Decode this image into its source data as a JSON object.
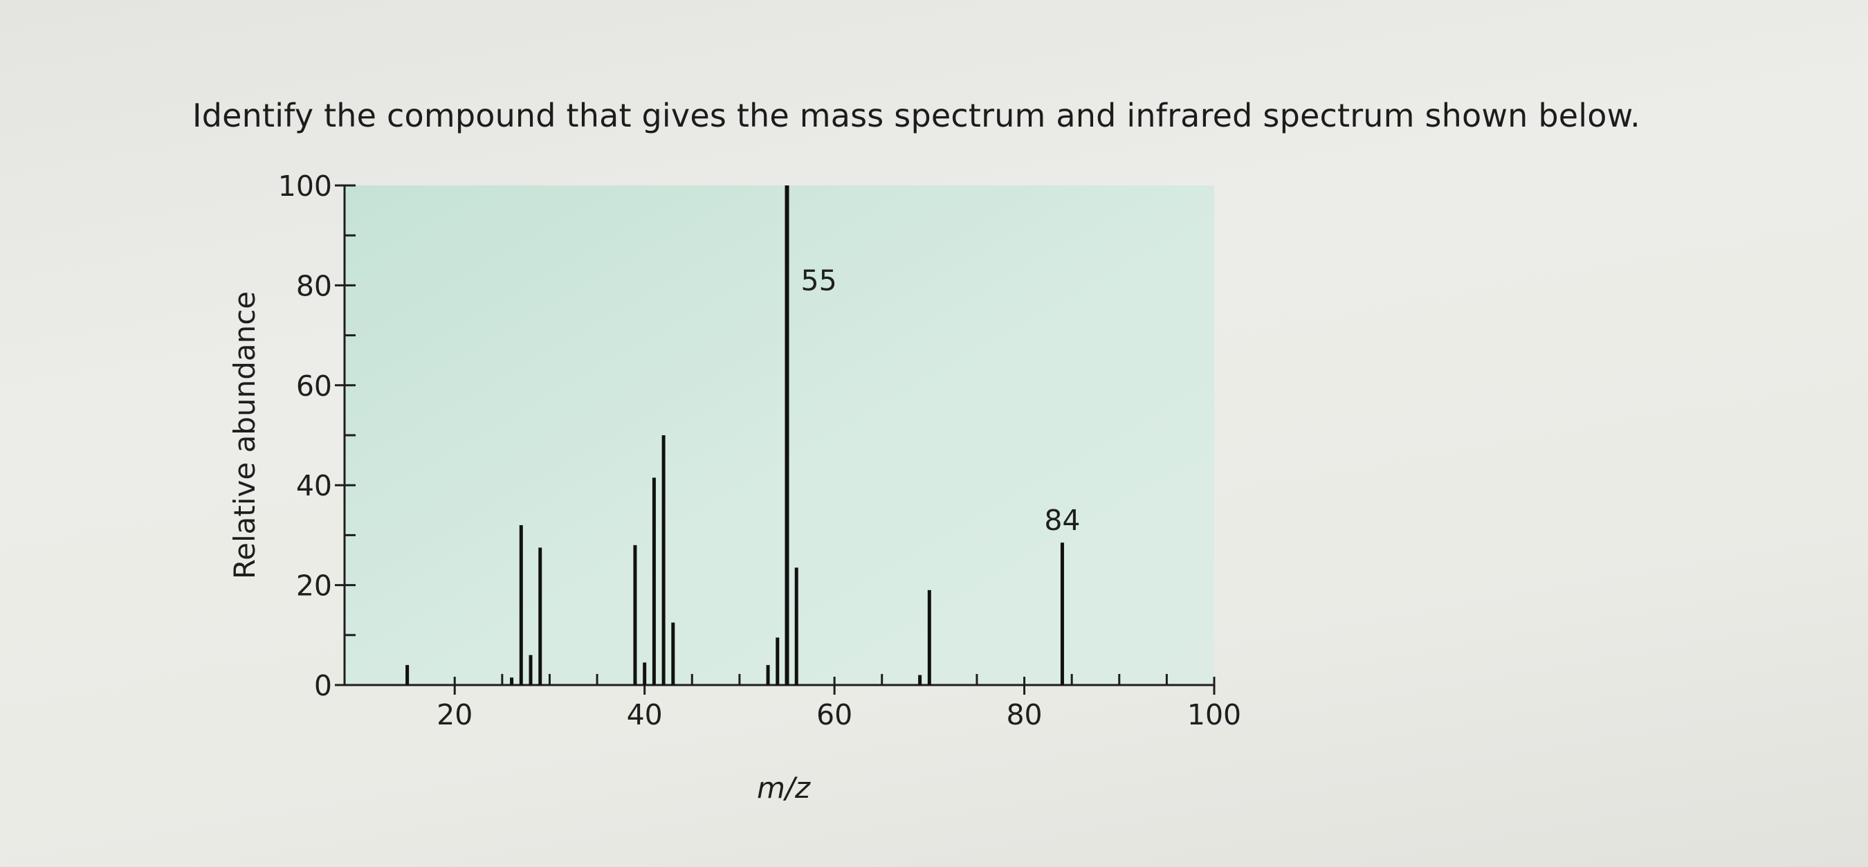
{
  "question": {
    "text": "Identify the compound that gives the mass spectrum and infrared spectrum shown below."
  },
  "chart_data": {
    "type": "bar",
    "subtype": "mass-spectrum",
    "xlabel": "m/z",
    "ylabel": "Relative abundance",
    "xlim": [
      10,
      100
    ],
    "ylim": [
      0,
      100
    ],
    "x_ticks_major": [
      20,
      40,
      60,
      80,
      100
    ],
    "x_ticks_minor": [
      15,
      25,
      30,
      35,
      45,
      50,
      55,
      65,
      70,
      75,
      85,
      90,
      95
    ],
    "y_ticks_major": [
      0,
      20,
      40,
      60,
      80,
      100
    ],
    "y_ticks_minor": [
      10,
      30,
      50,
      70,
      90
    ],
    "plot_background": "#cfe6dc",
    "bar_color": "#111111",
    "peaks": [
      {
        "mz": 15,
        "abundance": 4
      },
      {
        "mz": 26,
        "abundance": 1.5
      },
      {
        "mz": 27,
        "abundance": 32
      },
      {
        "mz": 28,
        "abundance": 6
      },
      {
        "mz": 29,
        "abundance": 27.5
      },
      {
        "mz": 39,
        "abundance": 28
      },
      {
        "mz": 40,
        "abundance": 4.5
      },
      {
        "mz": 41,
        "abundance": 41.5
      },
      {
        "mz": 42,
        "abundance": 50
      },
      {
        "mz": 43,
        "abundance": 12.5
      },
      {
        "mz": 53,
        "abundance": 4
      },
      {
        "mz": 54,
        "abundance": 9.5
      },
      {
        "mz": 55,
        "abundance": 100
      },
      {
        "mz": 56,
        "abundance": 23.5
      },
      {
        "mz": 69,
        "abundance": 2
      },
      {
        "mz": 70,
        "abundance": 19
      },
      {
        "mz": 84,
        "abundance": 28.5
      }
    ],
    "peak_labels": [
      {
        "mz": 55,
        "text": "55"
      },
      {
        "mz": 84,
        "text": "84"
      }
    ]
  }
}
